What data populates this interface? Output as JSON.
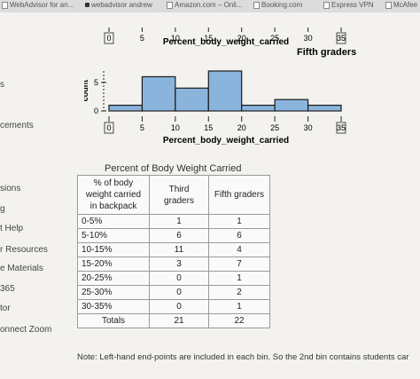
{
  "bookmarks": [
    {
      "label": "WebAdvisor for an...",
      "icon": "doc-icon"
    },
    {
      "label": "webadvisor andrew",
      "icon": "bookmark-icon"
    },
    {
      "label": "Amazon.com – Onli...",
      "icon": "doc-icon"
    },
    {
      "label": "Booking.com",
      "icon": "doc-icon"
    },
    {
      "label": "Express VPN",
      "icon": "doc-icon"
    },
    {
      "label": "McAfee",
      "icon": "doc-icon"
    }
  ],
  "sidebar": [
    "s",
    "cements",
    "sions",
    "g",
    "t Help",
    "r Resources",
    "e Materials",
    "365",
    "tor",
    "onnect Zoom"
  ],
  "chart": {
    "top_axis_xlabel": "Percent_body_weight_carried",
    "panel_label": "Fifth graders",
    "ylabel": "count",
    "xlabel": "Percent_body_weight_carried",
    "y_ticks": [
      "0",
      "5"
    ],
    "x_ticks": [
      "0",
      "5",
      "10",
      "15",
      "20",
      "25",
      "30",
      "35"
    ]
  },
  "chart_data": {
    "type": "bar",
    "title": "Fifth graders",
    "xlabel": "Percent_body_weight_carried",
    "ylabel": "count",
    "bins": [
      "0-5",
      "5-10",
      "10-15",
      "15-20",
      "20-25",
      "25-30",
      "30-35"
    ],
    "values": [
      1,
      6,
      4,
      7,
      1,
      2,
      1
    ],
    "xlim": [
      0,
      35
    ],
    "ylim": [
      0,
      7
    ]
  },
  "table": {
    "title": "Percent of Body Weight Carried",
    "headers": [
      "% of body weight carried in backpack",
      "Third graders",
      "Fifth graders"
    ],
    "rows": [
      [
        "0-5%",
        "1",
        "1"
      ],
      [
        "5-10%",
        "6",
        "6"
      ],
      [
        "10-15%",
        "11",
        "4"
      ],
      [
        "15-20%",
        "3",
        "7"
      ],
      [
        "20-25%",
        "0",
        "1"
      ],
      [
        "25-30%",
        "0",
        "2"
      ],
      [
        "30-35%",
        "0",
        "1"
      ]
    ],
    "totals": [
      "Totals",
      "21",
      "22"
    ]
  },
  "note": "Note: Left-hand end-points are included in each bin. So the 2nd bin contains students car",
  "colors": {
    "bar_fill": "#8ab4dc",
    "bar_stroke": "#1a1a1a",
    "background": "#f3f2ef"
  }
}
